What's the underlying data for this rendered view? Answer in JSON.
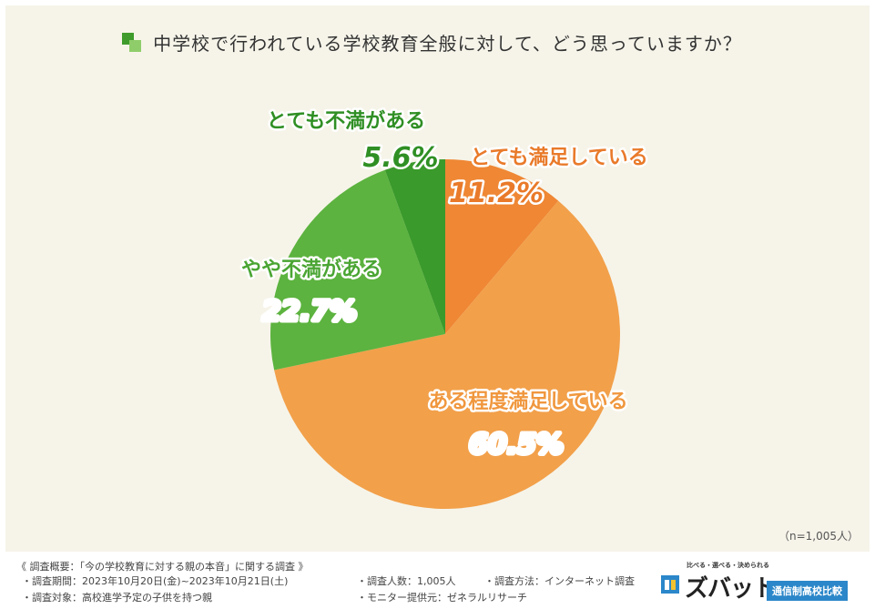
{
  "title": "中学校で行われている学校教育全般に対して、どう思っていますか？",
  "icons": {
    "title": "green-squares-icon",
    "brand": "brand-logo-icon"
  },
  "colors": {
    "background": "#f6f4e9",
    "very_satisfied": "#ef8734",
    "somewhat_satisfied": "#f2a04a",
    "somewhat_dissatisfied": "#5cb33f",
    "very_dissatisfied": "#3a9a2b"
  },
  "chart_data": {
    "type": "pie",
    "title": "中学校で行われている学校教育全般に対して、どう思っていますか？",
    "slices": [
      {
        "label": "とても満足している",
        "value": 11.2,
        "display": "11.2%",
        "color": "#ef8734"
      },
      {
        "label": "ある程度満足している",
        "value": 60.5,
        "display": "60.5%",
        "color": "#f2a04a"
      },
      {
        "label": "やや不満がある",
        "value": 22.7,
        "display": "22.7%",
        "color": "#5cb33f"
      },
      {
        "label": "とても不満がある",
        "value": 5.6,
        "display": "5.6%",
        "color": "#3a9a2b"
      }
    ],
    "start": "12 o'clock",
    "direction": "clockwise",
    "note": "（n=1,005人）"
  },
  "footer": {
    "heading": "《 調査概要：「今の学校教育に対する親の本音」に関する調査 》",
    "period": "・調査期間：2023年10月20日(金)~2023年10月21日(土)",
    "target": "・調査対象：高校進学予定の子供を持つ親",
    "count": "・調査人数：1,005人",
    "provider": "・モニター提供元：ゼネラルリサーチ",
    "method": "・調査方法：インターネット調査"
  },
  "brand": {
    "tagline": "比べる・選べる・決められる",
    "name": "ズバット",
    "badge": "通信制高校比較"
  }
}
